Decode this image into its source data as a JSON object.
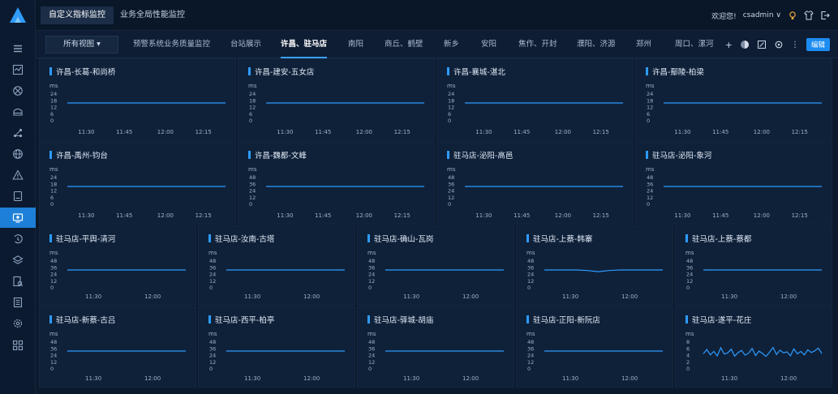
{
  "top_tabs": [
    "自定义指标监控",
    "业务全局性能监控"
  ],
  "user": {
    "welcome": "欢迎您!",
    "name": "csadmin"
  },
  "view_select": "所有视图 ▾",
  "sub_tabs": [
    {
      "label": "预警系统业务质量监控",
      "active": false
    },
    {
      "label": "台站展示",
      "active": false
    },
    {
      "label": "许昌、驻马店",
      "active": true
    },
    {
      "label": "南阳",
      "active": false
    },
    {
      "label": "商丘、鹤壁",
      "active": false
    },
    {
      "label": "新乡",
      "active": false
    },
    {
      "label": "安阳",
      "active": false
    },
    {
      "label": "焦作、开封",
      "active": false
    },
    {
      "label": "濮阳、济源",
      "active": false
    },
    {
      "label": "郑州",
      "active": false
    },
    {
      "label": "周口、漯河",
      "active": false
    }
  ],
  "edit_label": "编辑",
  "sidebar_icons": [
    "menu-icon",
    "dashboard-icon",
    "network-icon",
    "storage-icon",
    "topology-icon",
    "globe-icon",
    "alert-icon",
    "report-icon",
    "monitor-icon",
    "history-icon",
    "layers-icon",
    "inspect-icon",
    "document-icon",
    "settings-icon",
    "apps-icon"
  ],
  "panels": [
    {
      "title": "许昌-长葛-和尚桥",
      "unit": "ms",
      "yticks": [
        "24",
        "18",
        "12",
        "6",
        "0"
      ],
      "ymax": 24,
      "xticks": [
        "11:30",
        "11:45",
        "12:00",
        "12:15"
      ],
      "series": [
        16,
        16,
        16,
        16,
        16,
        16,
        16,
        16,
        16,
        16,
        16,
        16
      ]
    },
    {
      "title": "许昌-建安-五女店",
      "unit": "ms",
      "yticks": [
        "24",
        "18",
        "12",
        "6",
        "0"
      ],
      "ymax": 24,
      "xticks": [
        "11:30",
        "11:45",
        "12:00",
        "12:15"
      ],
      "series": [
        16,
        16,
        16,
        16,
        16,
        16,
        16,
        16,
        16,
        16,
        16,
        16
      ]
    },
    {
      "title": "许昌-襄城-湛北",
      "unit": "ms",
      "yticks": [
        "24",
        "18",
        "12",
        "6",
        "0"
      ],
      "ymax": 24,
      "xticks": [
        "11:30",
        "11:45",
        "12:00",
        "12:15"
      ],
      "series": [
        16,
        16,
        16,
        16,
        16,
        16,
        16,
        16,
        16,
        16,
        16,
        16
      ]
    },
    {
      "title": "许昌-鄢陵-柏梁",
      "unit": "ms",
      "yticks": [
        "24",
        "18",
        "12",
        "6",
        "0"
      ],
      "ymax": 24,
      "xticks": [
        "11:30",
        "11:45",
        "12:00",
        "12:15"
      ],
      "series": [
        16,
        16,
        16,
        16,
        16,
        16,
        16,
        16,
        16,
        16,
        16,
        16
      ]
    },
    {
      "title": "许昌-禹州-钧台",
      "unit": "ms",
      "yticks": [
        "24",
        "18",
        "12",
        "6",
        "0"
      ],
      "ymax": 24,
      "xticks": [
        "11:30",
        "11:45",
        "12:00",
        "12:15"
      ],
      "series": [
        16,
        16,
        16,
        16,
        16,
        16,
        16,
        16,
        16,
        16,
        16,
        16
      ]
    },
    {
      "title": "许昌-魏都-文峰",
      "unit": "ms",
      "yticks": [
        "48",
        "36",
        "24",
        "12",
        "0"
      ],
      "ymax": 48,
      "xticks": [
        "11:30",
        "11:45",
        "12:00",
        "12:15"
      ],
      "series": [
        32,
        32,
        32,
        32,
        32,
        32,
        32,
        32,
        32,
        32,
        32,
        32
      ]
    },
    {
      "title": "驻马店-泌阳-高邑",
      "unit": "ms",
      "yticks": [
        "48",
        "36",
        "24",
        "12",
        "0"
      ],
      "ymax": 48,
      "xticks": [
        "11:30",
        "11:45",
        "12:00",
        "12:15"
      ],
      "series": [
        32,
        32,
        32,
        32,
        32,
        32,
        32,
        32,
        32,
        32,
        32,
        32
      ]
    },
    {
      "title": "驻马店-泌阳-象河",
      "unit": "ms",
      "yticks": [
        "48",
        "36",
        "24",
        "12",
        "0"
      ],
      "ymax": 48,
      "xticks": [
        "11:30",
        "11:45",
        "12:00",
        "12:15"
      ],
      "series": [
        32,
        32,
        32,
        32,
        32,
        32,
        32,
        32,
        32,
        32,
        32,
        32
      ]
    },
    {
      "title": "驻马店-平舆-清河",
      "unit": "ms",
      "yticks": [
        "48",
        "36",
        "24",
        "12",
        "0"
      ],
      "ymax": 48,
      "xticks": [
        "11:30",
        "12:00"
      ],
      "series": [
        32,
        32,
        32,
        32,
        32,
        32,
        32,
        32,
        32,
        32,
        32,
        32
      ]
    },
    {
      "title": "驻马店-汝南-古塔",
      "unit": "ms",
      "yticks": [
        "48",
        "36",
        "24",
        "12",
        "0"
      ],
      "ymax": 48,
      "xticks": [
        "11:30",
        "12:00"
      ],
      "series": [
        32,
        32,
        32,
        32,
        32,
        32,
        32,
        32,
        32,
        32,
        32,
        32
      ]
    },
    {
      "title": "驻马店-确山-瓦岗",
      "unit": "ms",
      "yticks": [
        "48",
        "36",
        "24",
        "12",
        "0"
      ],
      "ymax": 48,
      "xticks": [
        "11:30",
        "12:00"
      ],
      "series": [
        32,
        32,
        32,
        32,
        32,
        32,
        32,
        32,
        32,
        32,
        32,
        32
      ]
    },
    {
      "title": "驻马店-上蔡-韩寨",
      "unit": "ms",
      "yticks": [
        "48",
        "36",
        "24",
        "12",
        "0"
      ],
      "ymax": 48,
      "xticks": [
        "11:30",
        "12:00"
      ],
      "series": [
        32,
        32,
        32,
        32,
        31,
        29,
        31,
        32,
        32,
        32,
        32,
        32
      ]
    },
    {
      "title": "驻马店-上蔡-蔡都",
      "unit": "ms",
      "yticks": [
        "48",
        "36",
        "24",
        "12",
        "0"
      ],
      "ymax": 48,
      "xticks": [
        "11:30",
        "12:00"
      ],
      "series": [
        32,
        32,
        32,
        32,
        32,
        32,
        32,
        32,
        32,
        32,
        32,
        32
      ]
    },
    {
      "title": "驻马店-新蔡-古吕",
      "unit": "ms",
      "yticks": [
        "48",
        "36",
        "24",
        "12",
        "0"
      ],
      "ymax": 48,
      "xticks": [
        "11:30",
        "12:00"
      ],
      "series": [
        32,
        32,
        32,
        32,
        32,
        32,
        32,
        32,
        32,
        32,
        32,
        32
      ]
    },
    {
      "title": "驻马店-西平-柏亭",
      "unit": "ms",
      "yticks": [
        "48",
        "36",
        "24",
        "12",
        "0"
      ],
      "ymax": 48,
      "xticks": [
        "11:30",
        "12:00"
      ],
      "series": [
        32,
        32,
        32,
        32,
        32,
        32,
        32,
        32,
        32,
        32,
        32,
        32
      ]
    },
    {
      "title": "驻马店-驿城-胡庙",
      "unit": "ms",
      "yticks": [
        "48",
        "36",
        "24",
        "12",
        "0"
      ],
      "ymax": 48,
      "xticks": [
        "11:30",
        "12:00"
      ],
      "series": [
        32,
        32,
        32,
        32,
        32,
        32,
        32,
        32,
        32,
        32,
        32,
        32
      ]
    },
    {
      "title": "驻马店-正阳-新阮店",
      "unit": "ms",
      "yticks": [
        "48",
        "36",
        "24",
        "12",
        "0"
      ],
      "ymax": 48,
      "xticks": [
        "11:30",
        "12:00"
      ],
      "series": [
        32,
        32,
        32,
        32,
        32,
        32,
        32,
        32,
        32,
        32,
        32,
        32
      ]
    },
    {
      "title": "驻马店-遂平-花庄",
      "unit": "ms",
      "yticks": [
        "8",
        "6",
        "4",
        "2",
        "0"
      ],
      "ymax": 8,
      "xticks": [
        "11:30",
        "12:00"
      ],
      "series": [
        4.5,
        5.8,
        4.2,
        5.2,
        3.9,
        6.3,
        4.4,
        4.8,
        5.9,
        3.8,
        4.9,
        5.5,
        4.1,
        4.7,
        6.1,
        4.0,
        5.3,
        4.6,
        3.7,
        5.0,
        6.4,
        4.3,
        5.6,
        4.8,
        5.1,
        3.9,
        6.0,
        4.5,
        5.2,
        4.2,
        5.7,
        4.9,
        5.4,
        6.2,
        4.6
      ]
    }
  ]
}
